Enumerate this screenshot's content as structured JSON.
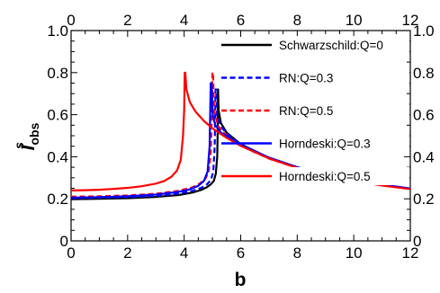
{
  "chart_data": {
    "type": "line",
    "xlabel": "b",
    "ylabel": "I",
    "ylabel_sup": "s",
    "ylabel_sub": "obs",
    "xlim": [
      0,
      12
    ],
    "ylim": [
      0,
      1.0
    ],
    "xticks": [
      0,
      2,
      4,
      6,
      8,
      10,
      12
    ],
    "yticks": [
      0,
      0.2,
      0.4,
      0.6,
      0.8,
      1.0
    ],
    "xtick_labels": [
      "0",
      "2",
      "4",
      "6",
      "8",
      "10",
      "12"
    ],
    "ytick_labels": [
      "0",
      "0.2",
      "0.4",
      "0.6",
      "0.8",
      "1.0"
    ],
    "grid": false,
    "legend_position": "right",
    "series": [
      {
        "name": "Schwarzschild:Q=0",
        "color": "#000000",
        "dash": "solid",
        "points": [
          [
            0,
            0.198
          ],
          [
            1,
            0.2
          ],
          [
            2,
            0.203
          ],
          [
            3,
            0.209
          ],
          [
            3.8,
            0.218
          ],
          [
            4.3,
            0.23
          ],
          [
            4.6,
            0.242
          ],
          [
            4.8,
            0.255
          ],
          [
            4.95,
            0.27
          ],
          [
            5.05,
            0.285
          ],
          [
            5.12,
            0.32
          ],
          [
            5.17,
            0.4
          ],
          [
            5.19,
            0.55
          ],
          [
            5.196,
            0.72
          ],
          [
            5.2,
            0.72
          ],
          [
            5.22,
            0.62
          ],
          [
            5.3,
            0.56
          ],
          [
            5.5,
            0.515
          ],
          [
            6,
            0.46
          ],
          [
            7,
            0.395
          ],
          [
            8,
            0.35
          ],
          [
            9,
            0.315
          ],
          [
            10,
            0.288
          ],
          [
            11,
            0.266
          ],
          [
            12,
            0.248
          ]
        ]
      },
      {
        "name": "RN:Q=0.3",
        "color": "#0000ff",
        "dash": "dashed",
        "points": [
          [
            0,
            0.203
          ],
          [
            1,
            0.205
          ],
          [
            2,
            0.208
          ],
          [
            3,
            0.214
          ],
          [
            3.8,
            0.225
          ],
          [
            4.3,
            0.238
          ],
          [
            4.6,
            0.252
          ],
          [
            4.8,
            0.268
          ],
          [
            4.95,
            0.29
          ],
          [
            5.03,
            0.33
          ],
          [
            5.08,
            0.45
          ],
          [
            5.11,
            0.72
          ],
          [
            5.13,
            0.72
          ],
          [
            5.16,
            0.6
          ],
          [
            5.3,
            0.545
          ],
          [
            5.5,
            0.51
          ],
          [
            6,
            0.457
          ],
          [
            7,
            0.394
          ],
          [
            8,
            0.349
          ],
          [
            9,
            0.315
          ],
          [
            10,
            0.288
          ],
          [
            11,
            0.266
          ],
          [
            12,
            0.248
          ]
        ]
      },
      {
        "name": "RN:Q=0.5",
        "color": "#ff0000",
        "dash": "dashed",
        "points": [
          [
            0,
            0.21
          ],
          [
            1,
            0.212
          ],
          [
            2,
            0.216
          ],
          [
            3,
            0.224
          ],
          [
            3.8,
            0.238
          ],
          [
            4.3,
            0.255
          ],
          [
            4.55,
            0.272
          ],
          [
            4.75,
            0.295
          ],
          [
            4.87,
            0.33
          ],
          [
            4.94,
            0.42
          ],
          [
            4.98,
            0.6
          ],
          [
            5.0,
            0.8
          ],
          [
            5.02,
            0.8
          ],
          [
            5.06,
            0.62
          ],
          [
            5.2,
            0.545
          ],
          [
            5.5,
            0.5
          ],
          [
            6,
            0.452
          ],
          [
            7,
            0.391
          ],
          [
            8,
            0.347
          ],
          [
            9,
            0.314
          ],
          [
            10,
            0.287
          ],
          [
            11,
            0.266
          ],
          [
            12,
            0.248
          ]
        ]
      },
      {
        "name": "Horndeski:Q=0.3",
        "color": "#0000ff",
        "dash": "solid",
        "points": [
          [
            0,
            0.205
          ],
          [
            1,
            0.208
          ],
          [
            2,
            0.212
          ],
          [
            3,
            0.22
          ],
          [
            3.8,
            0.233
          ],
          [
            4.2,
            0.245
          ],
          [
            4.5,
            0.262
          ],
          [
            4.7,
            0.285
          ],
          [
            4.83,
            0.33
          ],
          [
            4.9,
            0.45
          ],
          [
            4.94,
            0.75
          ],
          [
            4.97,
            0.75
          ],
          [
            5.01,
            0.6
          ],
          [
            5.1,
            0.55
          ],
          [
            5.3,
            0.515
          ],
          [
            5.6,
            0.49
          ],
          [
            6,
            0.458
          ],
          [
            7,
            0.396
          ],
          [
            8,
            0.35
          ],
          [
            9,
            0.316
          ],
          [
            10,
            0.289
          ],
          [
            11,
            0.267
          ],
          [
            12,
            0.249
          ]
        ]
      },
      {
        "name": "Horndeski:Q=0.5",
        "color": "#ff0000",
        "dash": "solid",
        "points": [
          [
            0,
            0.24
          ],
          [
            0.5,
            0.241
          ],
          [
            1,
            0.243
          ],
          [
            1.5,
            0.247
          ],
          [
            2,
            0.252
          ],
          [
            2.5,
            0.26
          ],
          [
            3,
            0.272
          ],
          [
            3.3,
            0.285
          ],
          [
            3.55,
            0.305
          ],
          [
            3.75,
            0.335
          ],
          [
            3.88,
            0.385
          ],
          [
            3.96,
            0.5
          ],
          [
            4.0,
            0.62
          ],
          [
            4.02,
            0.8
          ],
          [
            4.04,
            0.8
          ],
          [
            4.08,
            0.72
          ],
          [
            4.2,
            0.66
          ],
          [
            4.4,
            0.615
          ],
          [
            4.7,
            0.57
          ],
          [
            5,
            0.535
          ],
          [
            5.5,
            0.49
          ],
          [
            6,
            0.452
          ],
          [
            7,
            0.392
          ],
          [
            8,
            0.347
          ],
          [
            9,
            0.312
          ],
          [
            10,
            0.285
          ],
          [
            11,
            0.263
          ],
          [
            12,
            0.246
          ]
        ]
      }
    ]
  }
}
